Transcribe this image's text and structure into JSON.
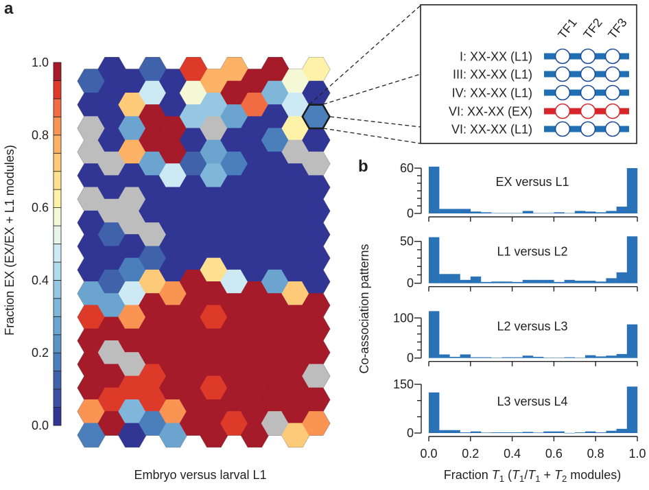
{
  "panel_labels": {
    "a": "a",
    "b": "b"
  },
  "chart_data": [
    {
      "type": "heatmap",
      "grid": "hexagonal",
      "title": "",
      "xlabel": "Embryo versus larval L1",
      "ylabel": "Fraction EX (EX/EX + L1 modules)",
      "colorbar": {
        "range": [
          0,
          1
        ],
        "segments": 20,
        "ticks": [
          "0.0",
          "0.2",
          "0.4",
          "0.6",
          "0.8",
          "1.0"
        ],
        "tick_values": [
          0,
          0.2,
          0.4,
          0.6,
          0.8,
          1.0
        ],
        "colors": [
          "#313695",
          "#3a4fa0",
          "#3f62aa",
          "#4a7fbc",
          "#5b93c5",
          "#6ba5cf",
          "#7fb6da",
          "#96c7e2",
          "#b0dced",
          "#cde9f3",
          "#e6f4ea",
          "#f5f8d4",
          "#fef1a8",
          "#fee090",
          "#fdca7a",
          "#fdb266",
          "#f99453",
          "#f16c42",
          "#dd3a2a",
          "#a51b2a"
        ],
        "missing_color": "#bdbdbd"
      },
      "columns": [
        [
          0.12,
          0,
          null,
          null,
          0,
          null,
          0,
          0,
          0,
          0.28,
          0.92,
          1,
          1,
          1,
          0.84,
          0.15
        ],
        [
          0,
          0,
          0,
          0,
          null,
          0,
          null,
          0.1,
          0,
          0.1,
          0.25,
          1,
          null,
          1,
          0.92,
          1
        ],
        [
          0,
          0.72,
          0.25,
          0.76,
          0,
          null,
          null,
          0,
          0.15,
          0.45,
          0.84,
          1,
          null,
          0.92,
          0.3,
          0
        ],
        [
          0.1,
          0.45,
          1,
          1,
          0.25,
          0,
          0,
          null,
          0.1,
          0.72,
          1,
          1,
          1,
          0.92,
          0.92,
          0.15
        ],
        [
          0,
          0,
          1,
          1,
          0.45,
          0,
          0,
          0,
          0,
          0.84,
          1,
          1,
          1,
          1,
          0.8,
          0.25
        ],
        [
          0.92,
          0.55,
          0.38,
          0,
          0.1,
          0,
          0,
          0,
          0,
          1,
          1,
          1,
          1,
          1,
          1,
          1
        ],
        [
          0.76,
          0.36,
          null,
          0.28,
          0.32,
          0,
          0,
          0,
          0.66,
          1,
          0.92,
          1,
          1,
          0.92,
          1,
          1
        ],
        [
          0.76,
          1,
          0.25,
          0,
          0.15,
          0,
          0,
          0,
          0,
          0.45,
          1,
          1,
          1,
          1,
          1,
          0.92
        ],
        [
          1,
          0.86,
          0,
          0,
          0,
          0,
          0,
          0,
          0,
          1,
          1,
          1,
          1,
          1,
          1,
          1
        ],
        [
          1,
          0.32,
          0,
          0.15,
          0,
          0,
          0,
          0,
          0,
          0.25,
          1,
          1,
          1,
          1,
          1,
          null
        ],
        [
          0.58,
          0.45,
          0.62,
          null,
          0,
          0,
          0,
          0,
          0,
          0.72,
          1,
          1,
          1,
          1,
          1,
          0.72
        ],
        [
          0.62,
          0,
          0.15,
          0,
          null,
          0,
          0,
          0,
          0,
          0,
          1,
          1,
          1,
          null,
          1,
          0.8
        ]
      ],
      "highlighted": {
        "column": 11,
        "row": 2
      }
    },
    {
      "type": "bar",
      "subtype": "histogram",
      "ylabel": "Co-association patterns",
      "xlabel_parts": [
        {
          "t": "Fraction "
        },
        {
          "t": "T",
          "i": true
        },
        {
          "t": "1",
          "sub": true
        },
        {
          "t": " ("
        },
        {
          "t": "T",
          "i": true
        },
        {
          "t": "1",
          "sub": true
        },
        {
          "t": "/"
        },
        {
          "t": "T",
          "i": true
        },
        {
          "t": "1",
          "sub": true
        },
        {
          "t": " + "
        },
        {
          "t": "T",
          "i": true
        },
        {
          "t": "2",
          "sub": true
        },
        {
          "t": " modules)"
        }
      ],
      "xlim": [
        0,
        1
      ],
      "bin_width": 0.05,
      "x_ticks": [
        "0.0",
        "0.2",
        "0.4",
        "0.6",
        "0.8",
        "1.0"
      ],
      "bar_color": "#2a72b8",
      "panels": [
        {
          "title": "EX versus L1",
          "ymax": 60,
          "ymax_label": "60",
          "ymin_label": "0",
          "minor_step": 10,
          "values": [
            62,
            6,
            6,
            6,
            2.5,
            1.5,
            0.5,
            0.5,
            0.5,
            3.3,
            0.5,
            0.5,
            1.5,
            0.5,
            3.3,
            2.5,
            1.5,
            3.3,
            9,
            60
          ]
        },
        {
          "title": "L1 versus L2",
          "ymax": 50,
          "ymax_label": "50",
          "ymin_label": "0",
          "minor_step": 10,
          "values": [
            55,
            11,
            11,
            4,
            8,
            1.5,
            2,
            2,
            1.5,
            4,
            4,
            4,
            1.5,
            4,
            3,
            3,
            2,
            6,
            13,
            56
          ]
        },
        {
          "title": "L2 versus L3",
          "ymax": 100,
          "ymax_label": "100",
          "ymin_label": "0",
          "minor_step": 20,
          "values": [
            117,
            9,
            3,
            9,
            2,
            2,
            1,
            2,
            2,
            6,
            3,
            0.6,
            0.6,
            2,
            0.6,
            7,
            4,
            6,
            10,
            84
          ]
        },
        {
          "title": "L3 versus L4",
          "ymax": 150,
          "ymax_label": "150",
          "ymin_label": "0",
          "minor_step": 50,
          "values": [
            125,
            9,
            9,
            2,
            5,
            1.4,
            2,
            2,
            2,
            3.5,
            1.4,
            5,
            5,
            0.3,
            2,
            5,
            2,
            7,
            13,
            143
          ]
        }
      ]
    }
  ],
  "inset": {
    "tf_labels": [
      "TF1",
      "TF2",
      "TF3"
    ],
    "state_colors": {
      "L1": "#1f6fb2",
      "EX": "#d7262b",
      "L1_ring": "#1a4a9a",
      "EX_ring": "#d7262b"
    },
    "rows": [
      {
        "label": "I: XX-XX (L1)",
        "state": "L1"
      },
      {
        "label": "III: XX-XX (L1)",
        "state": "L1"
      },
      {
        "label": "IV: XX-XX (L1)",
        "state": "L1"
      },
      {
        "label": "VI: XX-XX (EX)",
        "state": "EX"
      },
      {
        "label": "VI: XX-XX (L1)",
        "state": "L1"
      }
    ]
  }
}
